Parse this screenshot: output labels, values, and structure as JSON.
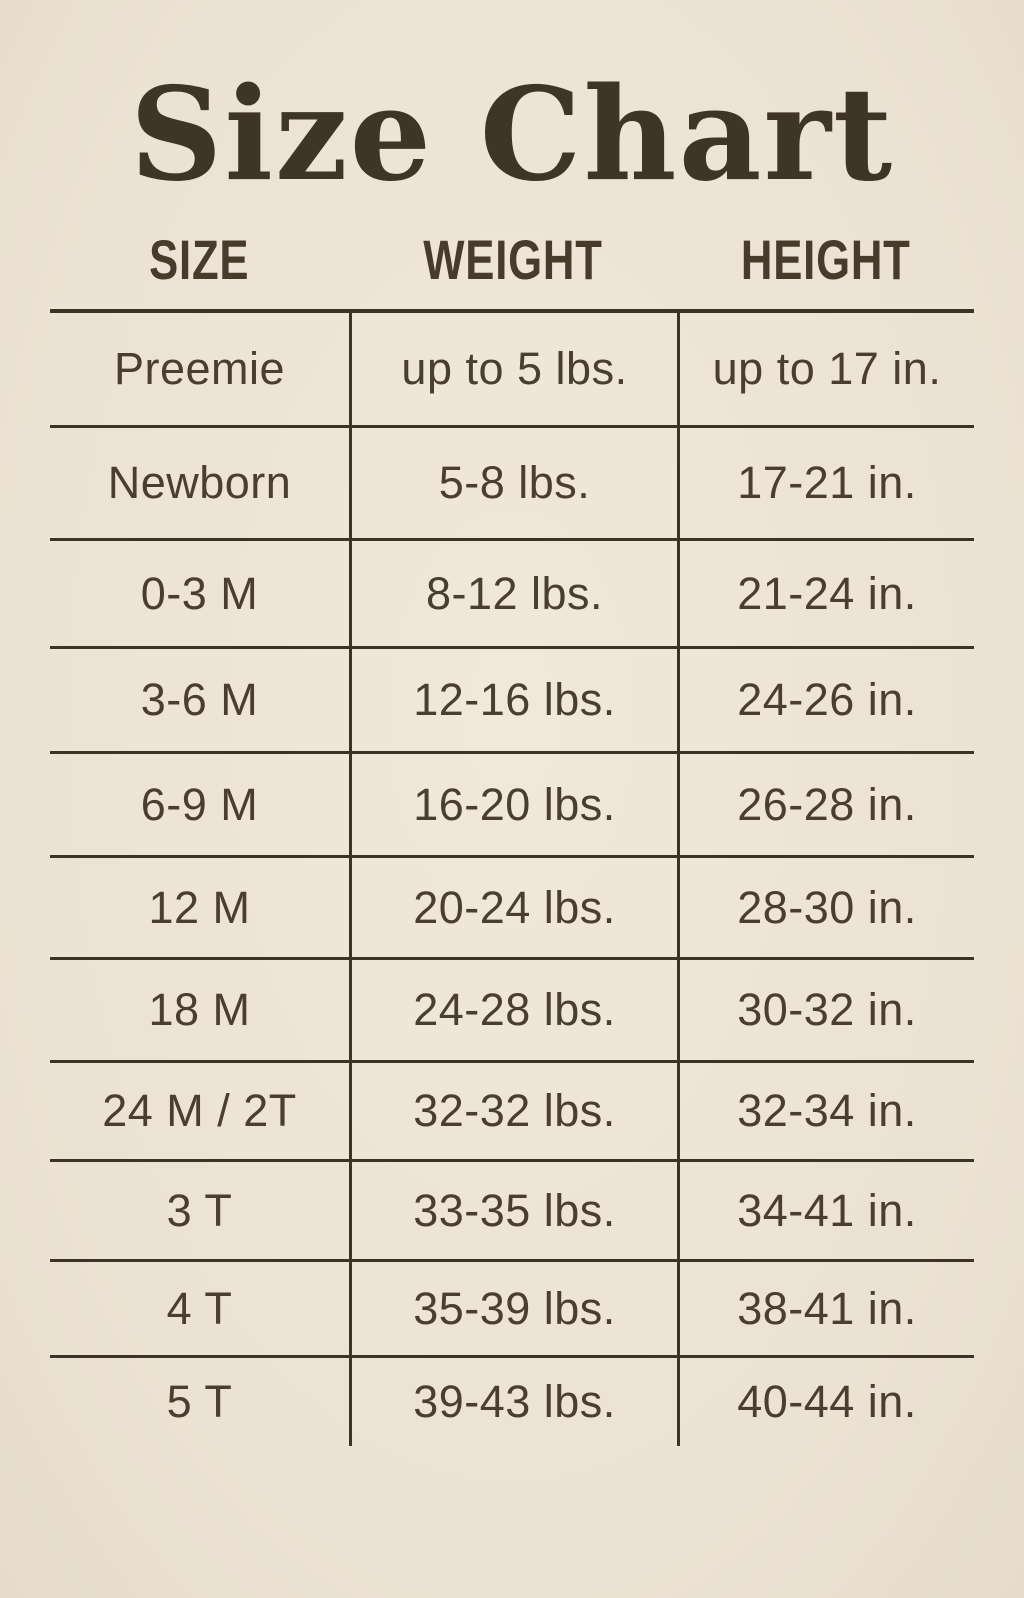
{
  "page": {
    "title": "Size Chart",
    "background_color": "#EDE4D6",
    "ink_color": "#463A2B",
    "line_color": "#3C3226"
  },
  "chart_data": {
    "type": "table",
    "title": "Size Chart",
    "columns": [
      "SIZE",
      "WEIGHT",
      "HEIGHT"
    ],
    "rows": [
      [
        "Preemie",
        "up to 5 lbs.",
        "up to 17 in."
      ],
      [
        "Newborn",
        "5-8 lbs.",
        "17-21 in."
      ],
      [
        "0-3 M",
        "8-12 lbs.",
        "21-24 in."
      ],
      [
        "3-6 M",
        "12-16 lbs.",
        "24-26 in."
      ],
      [
        "6-9 M",
        "16-20 lbs.",
        "26-28 in."
      ],
      [
        "12 M",
        "20-24 lbs.",
        "28-30 in."
      ],
      [
        "18 M",
        "24-28 lbs.",
        "30-32 in."
      ],
      [
        "24 M / 2T",
        "32-32 lbs.",
        "32-34 in."
      ],
      [
        "3 T",
        "33-35 lbs.",
        "34-41 in."
      ],
      [
        "4 T",
        "35-39 lbs.",
        "38-41 in."
      ],
      [
        "5 T",
        "39-43 lbs.",
        "40-44 in."
      ]
    ],
    "layout": {
      "grid": "horizontal rules between rows, vertical rules between columns only, no outer border, no bottom rule",
      "column_alignment": "center"
    }
  }
}
